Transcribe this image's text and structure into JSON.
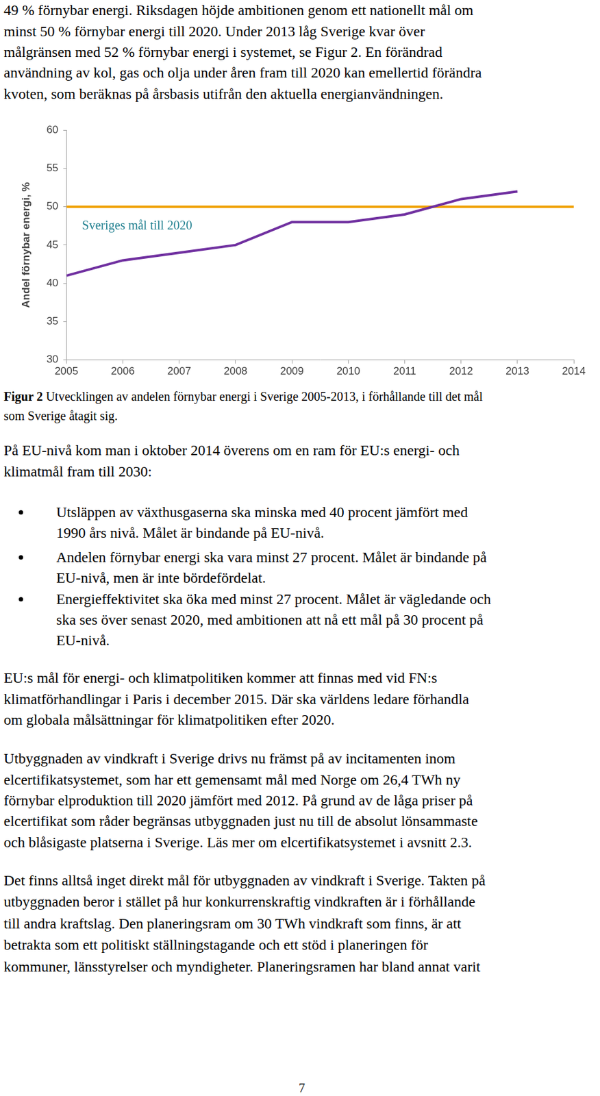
{
  "document": {
    "top_paragraph": [
      "49 % förnybar energi. Riksdagen höjde ambitionen genom ett nationellt mål om",
      "minst 50 % förnybar energi till 2020. Under 2013 låg Sverige kvar över",
      "målgränsen med 52 % förnybar energi i systemet, se Figur 2. En förändrad",
      "användning av kol, gas och olja under åren fram till 2020 kan emellertid förändra",
      "kvoten, som beräknas på årsbasis utifrån den aktuella energianvändningen."
    ],
    "figure_caption": {
      "label": "Figur 2",
      "lines": [
        "Utvecklingen av andelen förnybar energi i Sverige 2005-2013, i förhållande till det mål",
        "som Sverige åtagit sig."
      ]
    },
    "paragraph_1": [
      "På EU-nivå kom man i oktober 2014 överens om en ram för EU:s energi- och",
      "klimatmål fram till 2030:"
    ],
    "bullets": [
      [
        "Utsläppen av växthusgaserna ska minska med 40 procent jämfört med",
        "1990 års nivå. Målet är bindande på EU-nivå."
      ],
      [
        "Andelen förnybar energi ska vara minst 27 procent. Målet är bindande på",
        "EU-nivå, men är inte bördefördelat."
      ],
      [
        "Energieffektivitet ska öka med minst 27 procent. Målet är vägledande och",
        "ska ses över senast 2020, med ambitionen att nå ett mål på 30 procent på",
        "EU-nivå."
      ]
    ],
    "paragraph_2": [
      "EU:s mål för energi- och klimatpolitiken kommer att finnas med vid FN:s",
      "klimatförhandlingar i Paris i december 2015. Där ska världens ledare förhandla",
      "om globala målsättningar för klimatpolitiken efter 2020."
    ],
    "paragraph_3": [
      "Utbyggnaden av vindkraft i Sverige drivs nu främst på av incitamenten inom",
      "elcertifikatsystemet, som har ett gemensamt mål med Norge om 26,4 TWh ny",
      "förnybar elproduktion till 2020 jämfört med 2012. På grund av de låga priser på",
      "elcertifikat som råder begränsas utbyggnaden just nu till de absolut lönsammaste",
      "och blåsigaste platserna i Sverige. Läs mer om elcertifikatsystemet i avsnitt 2.3."
    ],
    "paragraph_4": [
      "Det finns alltså inget direkt mål för utbyggnaden av vindkraft i Sverige. Takten på",
      "utbyggnaden beror i stället på hur konkurrenskraftig vindkraften är i förhållande",
      "till andra kraftslag. Den planeringsram om 30 TWh vindkraft som finns, är att",
      "betrakta som ett politiskt ställningstagande och ett stöd i planeringen för",
      "kommuner, länsstyrelser och myndigheter. Planeringsramen har bland annat varit"
    ],
    "page_number": "7"
  },
  "chart_data": {
    "type": "line",
    "y_label": "Andel förnybar energi, %",
    "x": [
      2005,
      2006,
      2007,
      2008,
      2009,
      2010,
      2011,
      2012,
      2013,
      2014
    ],
    "series": [
      {
        "color": "#7030a0",
        "values": [
          41,
          43,
          44,
          45,
          48,
          48,
          49,
          51,
          52,
          null
        ]
      },
      {
        "name": "Sveriges mål till 2020",
        "color": "#f0a30a",
        "values": [
          50,
          50,
          50,
          50,
          50,
          50,
          50,
          50,
          50,
          50
        ]
      }
    ],
    "xlim": [
      2005,
      2014
    ],
    "xticks": [
      2005,
      2006,
      2007,
      2008,
      2009,
      2010,
      2011,
      2012,
      2013,
      2014
    ],
    "ylim": [
      30,
      60
    ],
    "yticks": [
      30,
      35,
      40,
      45,
      50,
      55,
      60
    ],
    "grid": false
  }
}
